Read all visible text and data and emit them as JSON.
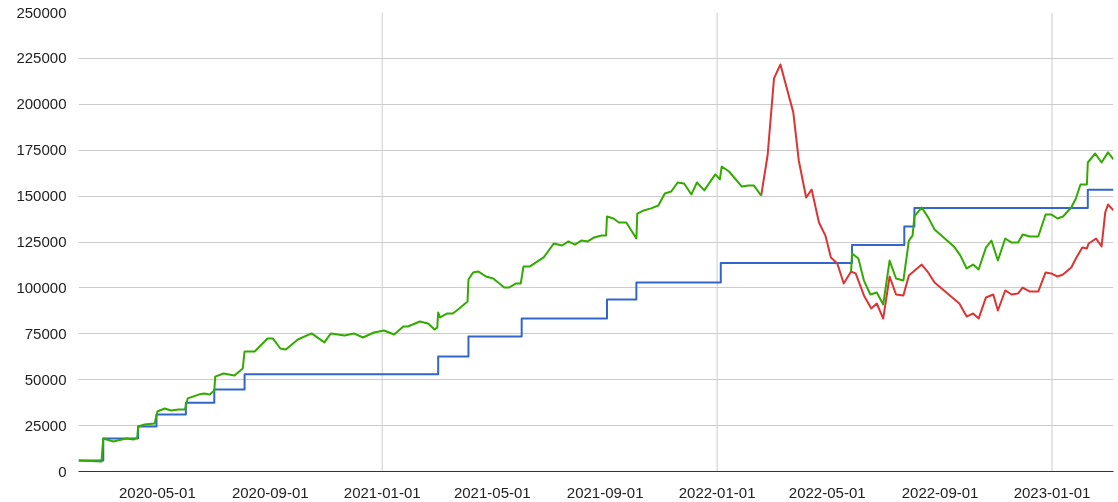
{
  "chart_data": {
    "type": "line",
    "xlim": [
      "2020-02-05",
      "2023-03-09"
    ],
    "ylim": [
      0,
      250000
    ],
    "xticks": [
      "2020-05-01",
      "2020-09-01",
      "2021-01-01",
      "2021-05-01",
      "2021-09-01",
      "2022-01-01",
      "2022-05-01",
      "2022-09-01",
      "2023-01-01"
    ],
    "yticks": [
      0,
      25000,
      50000,
      75000,
      100000,
      125000,
      150000,
      175000,
      200000,
      225000,
      250000
    ],
    "grid": "y",
    "ref_lines": [
      {
        "axis": "x",
        "value": "2021-01-01",
        "color": "#cccccc"
      },
      {
        "axis": "x",
        "value": "2022-01-01",
        "color": "#cccccc"
      },
      {
        "axis": "x",
        "value": "2023-01-01",
        "color": "#cccccc"
      }
    ],
    "series": [
      {
        "type": "step",
        "color": "#3366cc",
        "x": [
          "2020-02-05",
          "2020-03-03",
          "2020-04-10",
          "2020-04-30",
          "2020-06-01",
          "2020-07-02",
          "2020-08-04",
          "2021-03-03",
          "2021-04-05",
          "2021-06-02",
          "2021-09-03",
          "2021-10-05",
          "2022-01-05",
          "2022-05-28",
          "2022-07-24",
          "2022-08-04",
          "2023-02-09",
          "2023-03-09"
        ],
        "values": [
          6000,
          18000,
          24500,
          31000,
          37500,
          44700,
          53000,
          62600,
          73500,
          83300,
          93700,
          103000,
          113500,
          123300,
          133500,
          143500,
          153500,
          153500
        ]
      },
      {
        "color": "#dd3333",
        "x": [
          "2022-02-18",
          "2022-02-25",
          "2022-03-04",
          "2022-03-11",
          "2022-03-25",
          "2022-03-31",
          "2022-04-08",
          "2022-04-14",
          "2022-04-22",
          "2022-04-29",
          "2022-05-05",
          "2022-05-12",
          "2022-05-19",
          "2022-05-27",
          "2022-06-01",
          "2022-06-10",
          "2022-06-18",
          "2022-06-24",
          "2022-07-01",
          "2022-07-08",
          "2022-07-15",
          "2022-07-23",
          "2022-07-29",
          "2022-08-12",
          "2022-08-19",
          "2022-08-26",
          "2022-09-22",
          "2022-09-30",
          "2022-10-07",
          "2022-10-13",
          "2022-10-21",
          "2022-10-29",
          "2022-11-03",
          "2022-11-11",
          "2022-11-18",
          "2022-11-25",
          "2022-11-30",
          "2022-12-08",
          "2022-12-17",
          "2022-12-25",
          "2022-12-31",
          "2023-01-07",
          "2023-01-13",
          "2023-01-22",
          "2023-01-27",
          "2023-02-03",
          "2023-02-08",
          "2023-02-10",
          "2023-02-18",
          "2023-02-24",
          "2023-02-28",
          "2023-03-03",
          "2023-03-09"
        ],
        "values": [
          150300,
          172100,
          214100,
          221700,
          195600,
          169400,
          149200,
          153600,
          135600,
          128500,
          116600,
          113300,
          102400,
          108900,
          107900,
          95900,
          88800,
          91500,
          83300,
          106200,
          96400,
          95900,
          106800,
          112700,
          108400,
          102900,
          91500,
          84400,
          86100,
          83300,
          94800,
          96400,
          87700,
          98600,
          96400,
          97000,
          100200,
          98000,
          98000,
          108400,
          107900,
          106200,
          107300,
          111100,
          116000,
          122000,
          121500,
          124200,
          126900,
          122600,
          141100,
          145400,
          142200
        ]
      },
      {
        "color": "#33aa00",
        "x": [
          "2020-02-05",
          "2020-03-01",
          "2020-03-03",
          "2020-03-14",
          "2020-03-28",
          "2020-04-05",
          "2020-04-09",
          "2020-04-10",
          "2020-04-17",
          "2020-04-28",
          "2020-05-01",
          "2020-05-09",
          "2020-05-16",
          "2020-05-24",
          "2020-05-31",
          "2020-06-03",
          "2020-06-15",
          "2020-06-21",
          "2020-06-27",
          "2020-07-02",
          "2020-07-03",
          "2020-07-12",
          "2020-07-24",
          "2020-08-02",
          "2020-08-04",
          "2020-08-15",
          "2020-08-29",
          "2020-09-04",
          "2020-09-12",
          "2020-09-18",
          "2020-10-01",
          "2020-10-16",
          "2020-10-30",
          "2020-11-06",
          "2020-11-21",
          "2020-12-01",
          "2020-12-11",
          "2020-12-23",
          "2021-01-03",
          "2021-01-14",
          "2021-01-24",
          "2021-01-29",
          "2021-02-11",
          "2021-02-20",
          "2021-02-27",
          "2021-03-02",
          "2021-03-03",
          "2021-03-05",
          "2021-03-13",
          "2021-03-19",
          "2021-03-26",
          "2021-04-04",
          "2021-04-05",
          "2021-04-10",
          "2021-04-16",
          "2021-04-24",
          "2021-05-02",
          "2021-05-14",
          "2021-05-19",
          "2021-05-27",
          "2021-06-01",
          "2021-06-04",
          "2021-06-11",
          "2021-06-26",
          "2021-07-07",
          "2021-07-16",
          "2021-07-23",
          "2021-07-30",
          "2021-08-06",
          "2021-08-13",
          "2021-08-20",
          "2021-08-28",
          "2021-09-02",
          "2021-09-03",
          "2021-09-10",
          "2021-09-16",
          "2021-09-24",
          "2021-10-05",
          "2021-10-06",
          "2021-10-13",
          "2021-10-21",
          "2021-10-29",
          "2021-11-05",
          "2021-11-12",
          "2021-11-19",
          "2021-11-26",
          "2021-12-04",
          "2021-12-10",
          "2021-12-18",
          "2021-12-30",
          "2022-01-04",
          "2022-01-06",
          "2022-01-14",
          "2022-01-28",
          "2022-02-04",
          "2022-02-10",
          "2022-02-18",
          "2022-04-01",
          "2022-05-27",
          "2022-05-28",
          "2022-06-04",
          "2022-06-10",
          "2022-06-17",
          "2022-06-24",
          "2022-07-01",
          "2022-07-08",
          "2022-07-15",
          "2022-07-23",
          "2022-07-29",
          "2022-08-02",
          "2022-08-04",
          "2022-08-12",
          "2022-08-19",
          "2022-08-26",
          "2022-09-16",
          "2022-09-23",
          "2022-09-30",
          "2022-10-07",
          "2022-10-13",
          "2022-10-21",
          "2022-10-27",
          "2022-11-03",
          "2022-11-11",
          "2022-11-18",
          "2022-11-25",
          "2022-11-30",
          "2022-12-08",
          "2022-12-17",
          "2022-12-25",
          "2022-12-31",
          "2023-01-07",
          "2023-01-13",
          "2023-01-22",
          "2023-01-27",
          "2023-02-01",
          "2023-02-08",
          "2023-02-09",
          "2023-02-17",
          "2023-02-24",
          "2023-03-03",
          "2023-03-09"
        ],
        "values": [
          6000,
          5400,
          18000,
          16300,
          18000,
          17400,
          18500,
          24500,
          25600,
          26100,
          32700,
          34300,
          33200,
          33800,
          33800,
          39800,
          41900,
          42500,
          41900,
          44100,
          51700,
          53400,
          52300,
          56100,
          65400,
          65400,
          72400,
          72400,
          67000,
          66500,
          71900,
          75200,
          70300,
          75200,
          74100,
          75200,
          73000,
          75700,
          76800,
          74600,
          79000,
          79000,
          81700,
          80600,
          77300,
          78400,
          86600,
          83900,
          86100,
          86100,
          88800,
          92600,
          104600,
          108400,
          108900,
          106200,
          105100,
          100200,
          100200,
          102400,
          102400,
          111700,
          111700,
          116600,
          124200,
          123100,
          125300,
          123600,
          125800,
          125300,
          127500,
          128500,
          128500,
          138900,
          137800,
          135600,
          135600,
          126900,
          140500,
          142200,
          143300,
          144900,
          151400,
          152500,
          157400,
          156900,
          150900,
          157400,
          153100,
          161800,
          159100,
          166100,
          163400,
          155200,
          155800,
          155800,
          150300,
          null,
          108900,
          118700,
          116000,
          104000,
          96400,
          97500,
          91000,
          114900,
          105100,
          104000,
          125800,
          128500,
          138900,
          143800,
          138400,
          131800,
          122600,
          117700,
          110600,
          112700,
          110000,
          122000,
          125800,
          114900,
          126900,
          124700,
          124700,
          129100,
          128000,
          128000,
          140000,
          140000,
          137800,
          138900,
          143800,
          148700,
          156300,
          156300,
          168300,
          173200,
          168300,
          173800,
          170000
        ]
      }
    ]
  }
}
